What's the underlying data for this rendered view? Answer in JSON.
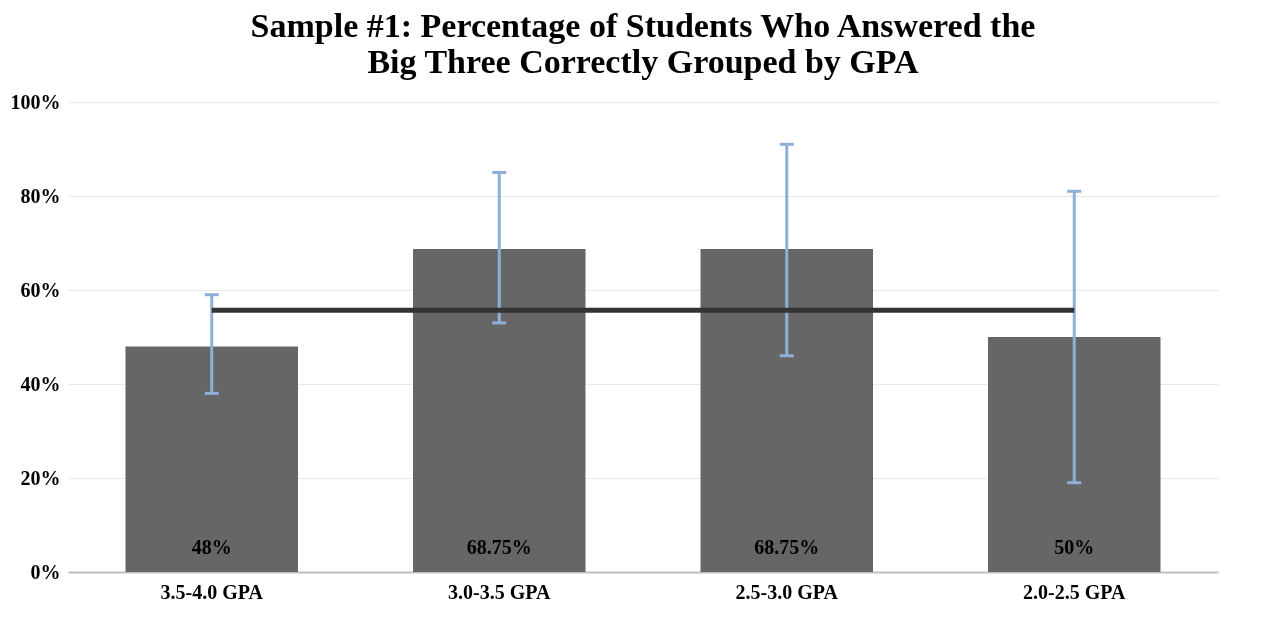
{
  "chart_data": {
    "type": "bar",
    "title": "Sample #1: Percentage of Students Who Answered the\nBig Three Correctly Grouped by GPA",
    "categories": [
      "3.5-4.0 GPA",
      "3.0-3.5 GPA",
      "2.5-3.0 GPA",
      "2.0-2.5 GPA"
    ],
    "series": [
      {
        "color": "#666666",
        "values": [
          48,
          68.75,
          68.75,
          50
        ],
        "errors": [
          [
            38,
            59
          ],
          [
            53,
            85
          ],
          [
            46,
            91
          ],
          [
            19,
            81
          ]
        ],
        "value_labels": [
          "48%",
          "68.75%",
          "68.75%",
          "50%"
        ]
      },
      {
        "type": "line",
        "color": "#333333",
        "values": [
          55.7,
          55.7,
          55.7,
          55.7
        ]
      }
    ],
    "ylim": [
      0,
      100
    ],
    "yticks": [
      {
        "value": 0,
        "label": "0%"
      },
      {
        "value": 20,
        "label": "20%"
      },
      {
        "value": 40,
        "label": "40%"
      },
      {
        "value": 60,
        "label": "60%"
      },
      {
        "value": 80,
        "label": "80%"
      },
      {
        "value": 100,
        "label": "100%"
      }
    ],
    "grid": "y"
  }
}
